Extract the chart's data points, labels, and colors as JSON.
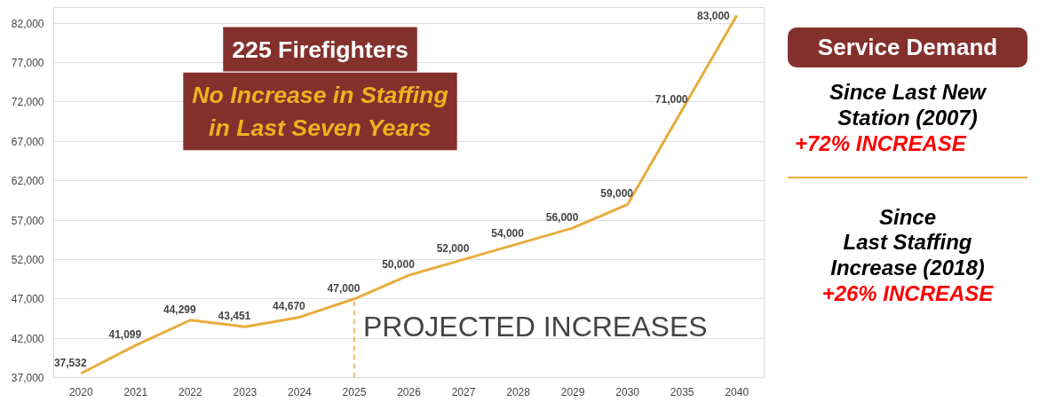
{
  "chart_data": {
    "type": "line",
    "categories": [
      "2020",
      "2021",
      "2022",
      "2023",
      "2024",
      "2025",
      "2026",
      "2027",
      "2028",
      "2029",
      "2030",
      "2035",
      "2040"
    ],
    "series": [
      {
        "color": "#e8ac3c",
        "values": [
          37532,
          41099,
          44299,
          43451,
          44670,
          47000,
          50000,
          52000,
          54000,
          56000,
          59000,
          71000,
          83000
        ],
        "value_labels": [
          "37,532",
          "41,099",
          "44,299",
          "43,451",
          "44,670",
          "47,000",
          "50,000",
          "52,000",
          "54,000",
          "56,000",
          "59,000",
          "71,000",
          "83,000"
        ]
      }
    ],
    "ylim": [
      37000,
      84000
    ],
    "yticks": [
      {
        "value": 37000,
        "label": "37,000"
      },
      {
        "value": 42000,
        "label": "42,000"
      },
      {
        "value": 47000,
        "label": "47,000"
      },
      {
        "value": 52000,
        "label": "52,000"
      },
      {
        "value": 57000,
        "label": "57,000"
      },
      {
        "value": 62000,
        "label": "62,000"
      },
      {
        "value": 67000,
        "label": "67,000"
      },
      {
        "value": 72000,
        "label": "72,000"
      },
      {
        "value": 77000,
        "label": "77,000"
      },
      {
        "value": 82000,
        "label": "82,000"
      }
    ],
    "grid": "y",
    "marker": "none",
    "line_style": "solid",
    "ref_lines": [
      {
        "axis": "x",
        "value": "2025",
        "label": "PROJECTED INCREASES",
        "color": "#e8ac3c",
        "line_style": "dashed"
      }
    ],
    "annotations": [
      "225 Firefighters",
      "No Increase in Staffing in Last Seven Years",
      "Service Demand",
      "Since Last New Station (2007)",
      "+72% INCREASE",
      "Since Last Staffing Increase (2018)",
      "+26% INCREASE"
    ]
  }
}
